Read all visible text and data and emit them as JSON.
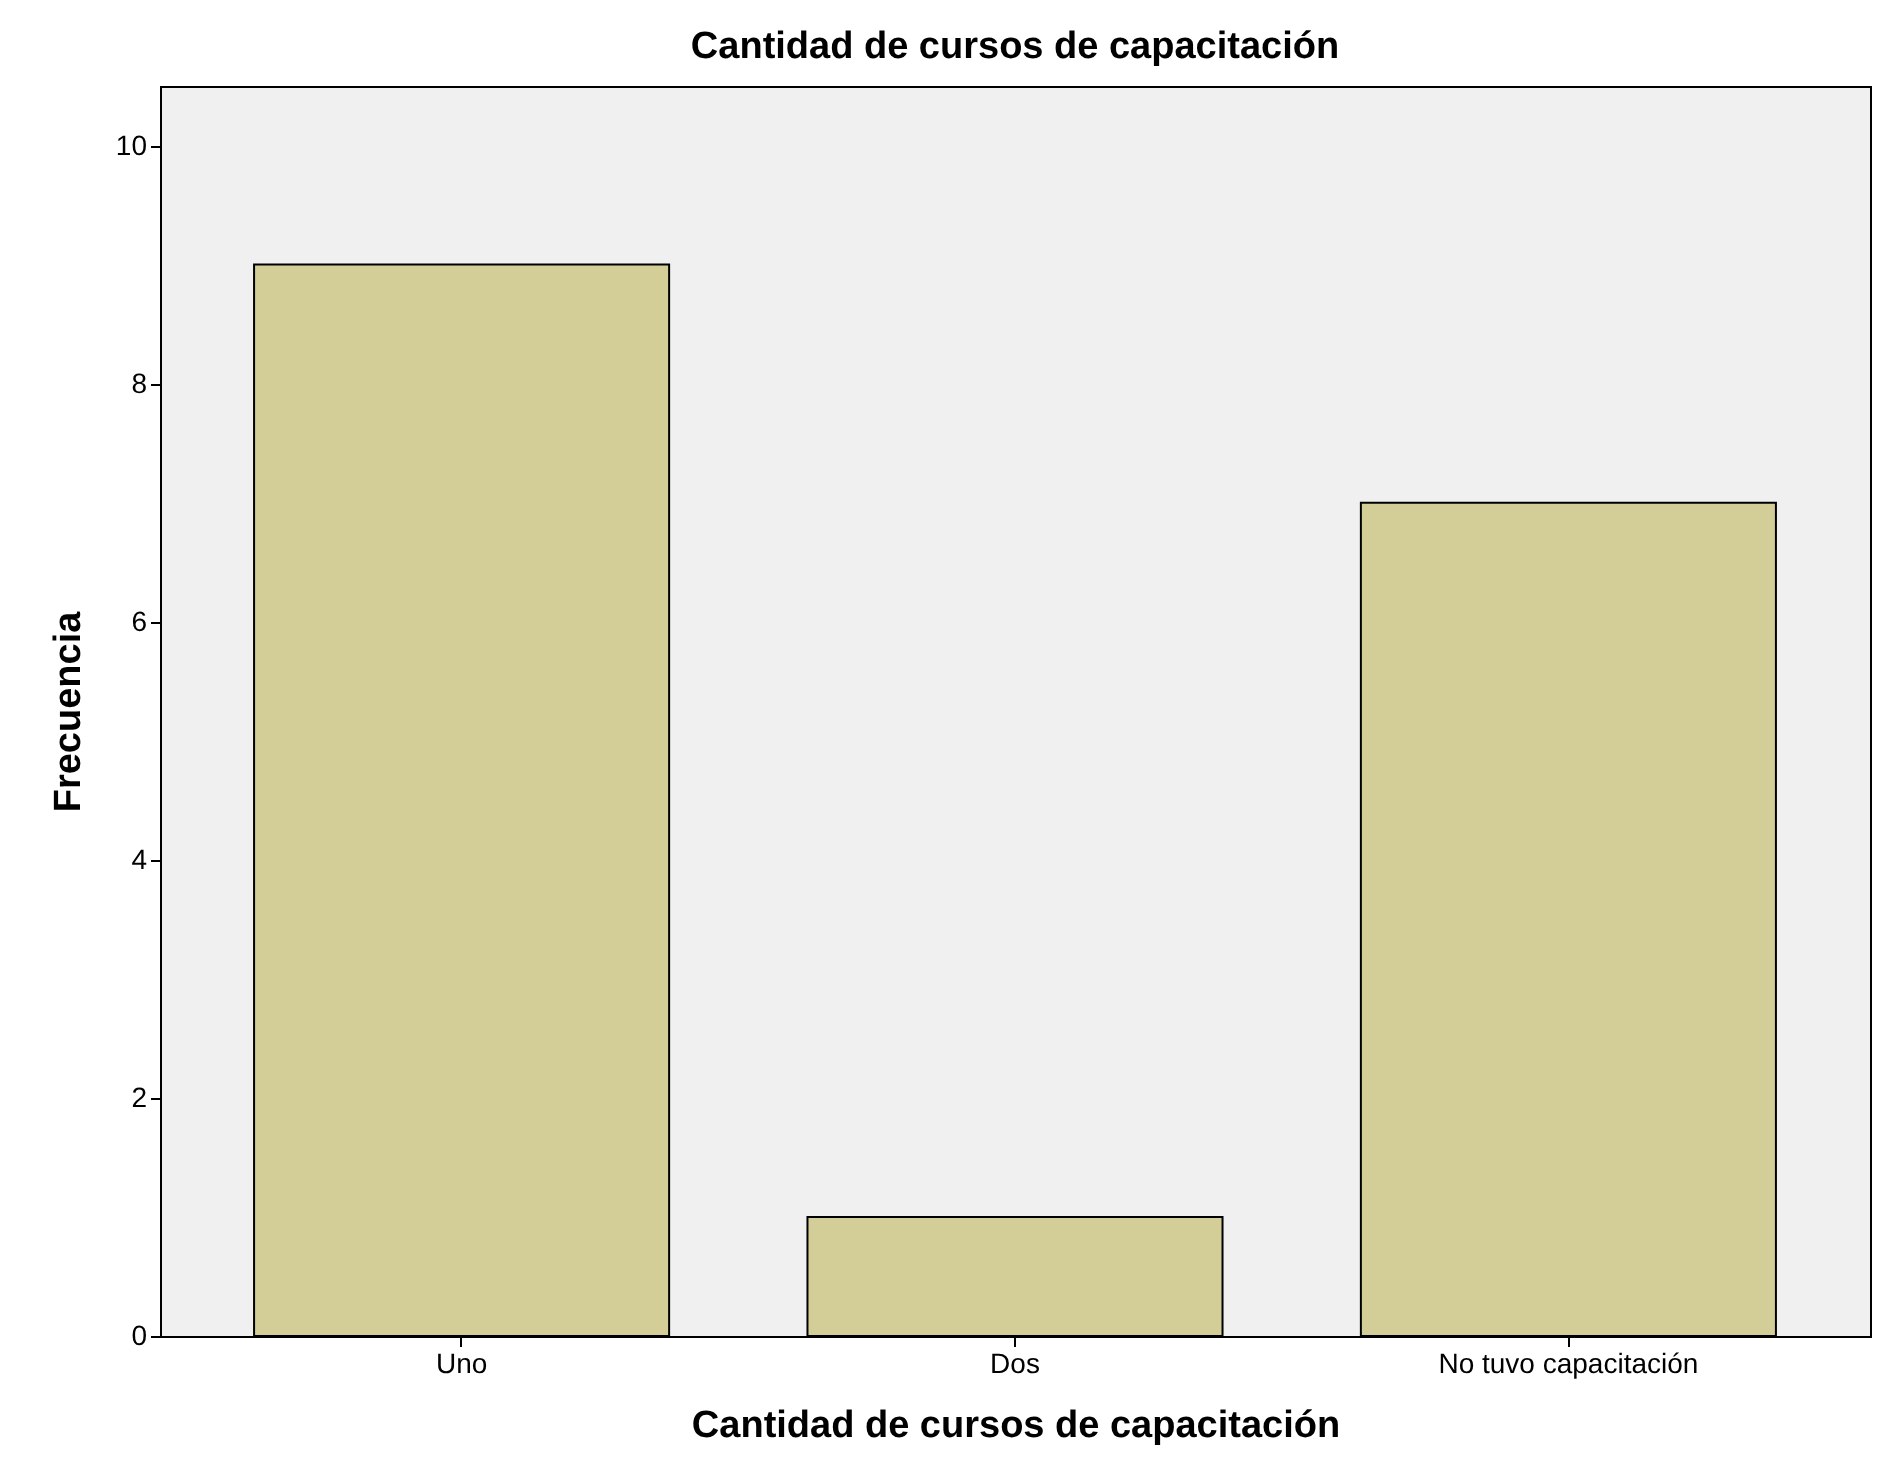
{
  "chart_data": {
    "type": "bar",
    "title": "Cantidad de cursos de capacitación",
    "xlabel": "Cantidad de cursos de capacitación",
    "ylabel": "Frecuencia",
    "categories": [
      "Uno",
      "Dos",
      "No tuvo capacitación"
    ],
    "values": [
      9,
      1,
      7
    ],
    "color": "#d3ce97",
    "ylim": [
      0,
      10.5
    ],
    "yticks": [
      0,
      2,
      4,
      6,
      8,
      10
    ],
    "grid": false
  }
}
